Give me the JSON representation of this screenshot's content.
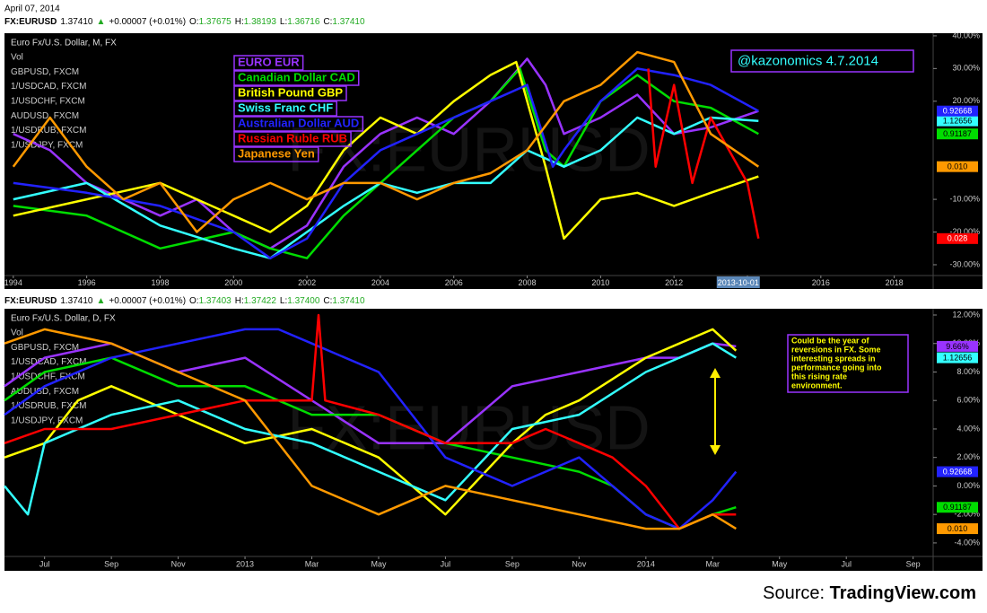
{
  "date": "April 07, 2014",
  "source": {
    "prefix": "Source:",
    "site": "TradingView.com"
  },
  "chart_data": [
    {
      "type": "line",
      "quote": [
        {
          "text": "FX:EURUSD",
          "color": "#000000"
        },
        {
          "text": "1.37410",
          "color": "#000000"
        },
        {
          "text": "▲",
          "color": "#22aa22"
        },
        {
          "text": "+0.00007 (+0.01%)",
          "color": "#000000"
        },
        {
          "text": "O:",
          "color": "#000000"
        },
        {
          "text": "1.37675",
          "color": "#22aa22"
        },
        {
          "text": "H:",
          "color": "#000000"
        },
        {
          "text": "1.38193",
          "color": "#22aa22"
        },
        {
          "text": "L:",
          "color": "#000000"
        },
        {
          "text": "1.36716",
          "color": "#22aa22"
        },
        {
          "text": "C:",
          "color": "#000000"
        },
        {
          "text": "1.37410",
          "color": "#22aa22"
        }
      ],
      "subtitle": "Euro Fx/U.S. Dollar, M, FX",
      "symbols": [
        "Vol",
        "GBPUSD, FXCM",
        "1/USDCAD, FXCM",
        "1/USDCHF, FXCM",
        "AUDUSD, FXCM",
        "1/USDRUB, FXCM",
        "1/USDJPY, FXCM"
      ],
      "annotation": [
        "@kazonomics 4.7.2014"
      ],
      "crosshair_label": {
        "value": 2013.75,
        "label": "2013-10-01"
      },
      "legend": true,
      "xlim": [
        1993.76,
        2019.06
      ],
      "xticks": [
        1994,
        1996,
        1998,
        2000,
        2002,
        2004,
        2006,
        2008,
        2010,
        2012,
        2014,
        2016,
        2018
      ],
      "ylim": [
        -33.3,
        40.8
      ],
      "yticks": [
        {
          "value": 40,
          "label": "40.00%"
        },
        {
          "value": 30,
          "label": "30.00%"
        },
        {
          "value": 20,
          "label": "20.00%"
        },
        {
          "value": -10,
          "label": "-10.00%"
        },
        {
          "value": -20,
          "label": "-20.00%"
        },
        {
          "value": -30,
          "label": "-30.00%"
        }
      ],
      "series": [
        {
          "name": "EURO EUR",
          "color": "#9933ff",
          "x": [
            1994,
            1995,
            1996,
            1997,
            1998,
            1999,
            2000,
            2001,
            2002,
            2003,
            2004,
            2005,
            2006,
            2007,
            2008,
            2008.5,
            2009,
            2010,
            2011,
            2012,
            2013,
            2014.3
          ],
          "values": [
            10,
            5,
            -5,
            -10,
            -15,
            -10,
            -20,
            -25,
            -18,
            0,
            10,
            15,
            10,
            20,
            33,
            25,
            10,
            15,
            22,
            10,
            12,
            17
          ]
        },
        {
          "name": "Canadian Dollar CAD",
          "color": "#00dd00",
          "x": [
            1994,
            1996,
            1998,
            2000,
            2001,
            2002,
            2003,
            2004,
            2005,
            2006,
            2007,
            2007.8,
            2008.5,
            2009,
            2010,
            2011,
            2012,
            2013,
            2014.3
          ],
          "values": [
            -12,
            -15,
            -25,
            -20,
            -25,
            -28,
            -15,
            -5,
            5,
            15,
            20,
            30,
            5,
            0,
            20,
            28,
            20,
            18,
            10
          ],
          "tag": "0.91187"
        },
        {
          "name": "British Pound GBP",
          "color": "#ffff00",
          "x": [
            1994,
            1996,
            1998,
            1999,
            2000,
            2001,
            2002,
            2003,
            2004,
            2005,
            2006,
            2007,
            2007.7,
            2008.5,
            2009,
            2010,
            2011,
            2012,
            2013,
            2014.3
          ],
          "values": [
            -15,
            -10,
            -5,
            -10,
            -15,
            -20,
            -12,
            5,
            15,
            10,
            20,
            28,
            32,
            0,
            -22,
            -10,
            -8,
            -12,
            -8,
            -3
          ]
        },
        {
          "name": "Swiss Franc  CHF",
          "color": "#33ffff",
          "x": [
            1994,
            1996,
            1998,
            2000,
            2001,
            2002,
            2003,
            2004,
            2005,
            2006,
            2007,
            2008,
            2009,
            2010,
            2011,
            2012,
            2013,
            2014.3
          ],
          "values": [
            -10,
            -5,
            -18,
            -25,
            -28,
            -20,
            -12,
            -5,
            -8,
            -5,
            -5,
            5,
            0,
            5,
            15,
            10,
            15,
            14
          ],
          "tag": "1.12656"
        },
        {
          "name": "Australian Dollar AUD",
          "color": "#2222ff",
          "x": [
            1994,
            1996,
            1998,
            2000,
            2001,
            2002,
            2003,
            2004,
            2005,
            2006,
            2007,
            2008,
            2008.7,
            2009,
            2010,
            2011,
            2012,
            2013,
            2014.3
          ],
          "values": [
            -5,
            -8,
            -12,
            -20,
            -28,
            -22,
            -5,
            5,
            10,
            15,
            20,
            25,
            0,
            5,
            20,
            30,
            28,
            25,
            17
          ],
          "tag": "0.92668"
        },
        {
          "name": "Russian Ruble RUB",
          "color": "#ff0000",
          "x": [
            2011.3,
            2011.5,
            2012,
            2012.5,
            2013,
            2013.5,
            2014,
            2014.3
          ],
          "values": [
            30,
            0,
            25,
            -5,
            15,
            5,
            -5,
            -22
          ],
          "tag": "0.028"
        },
        {
          "name": "Japanese Yen",
          "color": "#ff9900",
          "x": [
            1994,
            1995,
            1996,
            1997,
            1998,
            1999,
            2000,
            2001,
            2002,
            2003,
            2004,
            2005,
            2006,
            2007,
            2008,
            2009,
            2010,
            2011,
            2012,
            2013,
            2014.3
          ],
          "values": [
            0,
            15,
            0,
            -10,
            -5,
            -20,
            -10,
            -5,
            -10,
            -5,
            -5,
            -10,
            -5,
            -2,
            5,
            20,
            25,
            35,
            32,
            10,
            0
          ],
          "tag": "0.010"
        }
      ]
    },
    {
      "type": "line",
      "quote": [
        {
          "text": "FX:EURUSD",
          "color": "#000000"
        },
        {
          "text": "1.37410",
          "color": "#000000"
        },
        {
          "text": "▲",
          "color": "#22aa22"
        },
        {
          "text": "+0.00007 (+0.01%)",
          "color": "#000000"
        },
        {
          "text": "O:",
          "color": "#000000"
        },
        {
          "text": "1.37403",
          "color": "#22aa22"
        },
        {
          "text": "H:",
          "color": "#000000"
        },
        {
          "text": "1.37422",
          "color": "#22aa22"
        },
        {
          "text": "L:",
          "color": "#000000"
        },
        {
          "text": "1.37400",
          "color": "#22aa22"
        },
        {
          "text": "C:",
          "color": "#000000"
        },
        {
          "text": "1.37410",
          "color": "#22aa22"
        }
      ],
      "subtitle": "Euro Fx/U.S. Dollar, D, FX",
      "symbols": [
        "Vol",
        "GBPUSD, FXCM",
        "1/USDCAD, FXCM",
        "1/USDCHF, FXCM",
        "AUDUSD, FXCM",
        "1/USDRUB, FXCM",
        "1/USDJPY, FXCM"
      ],
      "annotation": [
        "Could be the year of",
        "reversions in FX.  Some",
        "interesting spreads in",
        "performance going into",
        "this rising rate",
        "environment."
      ],
      "legend": false,
      "xlim": [
        4.8,
        32.6
      ],
      "xticks": [
        {
          "value": 6,
          "label": "Jul"
        },
        {
          "value": 8,
          "label": "Sep"
        },
        {
          "value": 10,
          "label": "Nov"
        },
        {
          "value": 12,
          "label": "2013"
        },
        {
          "value": 14,
          "label": "Mar"
        },
        {
          "value": 16,
          "label": "May"
        },
        {
          "value": 18,
          "label": "Jul"
        },
        {
          "value": 20,
          "label": "Sep"
        },
        {
          "value": 22,
          "label": "Nov"
        },
        {
          "value": 24,
          "label": "2014"
        },
        {
          "value": 26,
          "label": "Mar"
        },
        {
          "value": 28,
          "label": "May"
        },
        {
          "value": 30,
          "label": "Jul"
        },
        {
          "value": 32,
          "label": "Sep"
        }
      ],
      "ylim": [
        -4.95,
        12.44
      ],
      "yticks": [
        {
          "value": 12,
          "label": "12.00%"
        },
        {
          "value": 10,
          "label": "10.00%"
        },
        {
          "value": 8,
          "label": "8.00%"
        },
        {
          "value": 6,
          "label": "6.00%"
        },
        {
          "value": 4,
          "label": "4.00%"
        },
        {
          "value": 2,
          "label": "2.00%"
        },
        {
          "value": 0,
          "label": "0.00%"
        },
        {
          "value": -2,
          "label": "-2.00%"
        },
        {
          "value": -4,
          "label": "-4.00%"
        }
      ],
      "series": [
        {
          "color": "#9933ff",
          "x": [
            4.8,
            6,
            8,
            10,
            12,
            14,
            16,
            18,
            19,
            20,
            22,
            24,
            25,
            26,
            26.7
          ],
          "values": [
            7,
            9,
            10,
            8,
            9,
            6,
            3,
            3,
            5,
            7,
            8,
            9,
            9,
            10,
            9.8
          ],
          "tag": "9.66%"
        },
        {
          "color": "#00dd00",
          "x": [
            4.8,
            6,
            8,
            10,
            12,
            14,
            16,
            18,
            20,
            22,
            23,
            24,
            25,
            26,
            26.7
          ],
          "values": [
            6,
            8,
            9,
            7,
            7,
            5,
            5,
            3,
            2,
            1,
            0,
            -2,
            -3,
            -2,
            -1.5
          ],
          "tag": "0.91187"
        },
        {
          "color": "#ffff00",
          "x": [
            4.8,
            6,
            7,
            8,
            10,
            12,
            14,
            16,
            18,
            20,
            21,
            22,
            24,
            25,
            26,
            26.7
          ],
          "values": [
            2,
            3,
            6,
            7,
            5,
            3,
            4,
            2,
            -2,
            3,
            5,
            6,
            9,
            10,
            11,
            9.5
          ]
        },
        {
          "color": "#33ffff",
          "x": [
            4.8,
            5.5,
            6,
            8,
            10,
            12,
            14,
            16,
            18,
            20,
            22,
            24,
            25,
            26,
            26.7
          ],
          "values": [
            0,
            -2,
            3,
            5,
            6,
            4,
            3,
            1,
            -1,
            4,
            5,
            8,
            9,
            10,
            9
          ],
          "tag": "1.12656"
        },
        {
          "color": "#2222ff",
          "x": [
            4.8,
            6,
            8,
            10,
            12,
            13,
            14,
            16,
            17,
            18,
            20,
            22,
            23,
            24,
            25,
            26,
            26.7
          ],
          "values": [
            5,
            7,
            9,
            10,
            11,
            11,
            10,
            8,
            5,
            2,
            0,
            2,
            0,
            -2,
            -3,
            -1,
            1
          ],
          "tag": "0.92668"
        },
        {
          "color": "#ff0000",
          "x": [
            4.8,
            6,
            8,
            10,
            12,
            14,
            14.2,
            14.4,
            16,
            18,
            20,
            21,
            22,
            23,
            24,
            25,
            26,
            26.7
          ],
          "values": [
            3,
            4,
            4,
            5,
            6,
            6,
            12,
            6,
            5,
            3,
            3,
            4,
            3,
            2,
            0,
            -3,
            -2,
            -2
          ]
        },
        {
          "color": "#ff9900",
          "x": [
            4.8,
            6,
            8,
            10,
            12,
            14,
            16,
            17,
            18,
            20,
            22,
            24,
            25,
            26,
            26.7
          ],
          "values": [
            10,
            11,
            10,
            8,
            6,
            0,
            -2,
            -1,
            0,
            -1,
            -2,
            -3,
            -3,
            -2,
            -3
          ],
          "tag": "0.010"
        }
      ]
    }
  ]
}
